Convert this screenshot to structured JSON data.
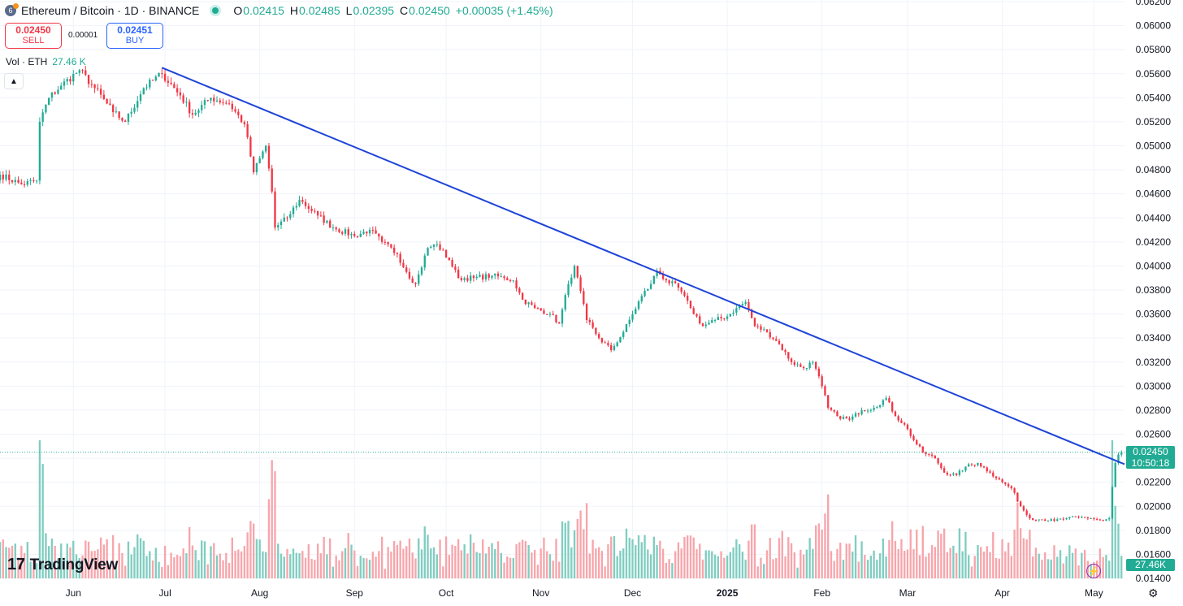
{
  "header": {
    "coin_icon_text": "6",
    "symbol": "Ethereum / Bitcoin · 1D · BINANCE",
    "open_label": "O",
    "open": "0.02415",
    "high_label": "H",
    "high": "0.02485",
    "low_label": "L",
    "low": "0.02395",
    "close_label": "C",
    "close": "0.02450",
    "change": "+0.00035 (+1.45%)"
  },
  "trade": {
    "sell_price": "0.02450",
    "sell_label": "SELL",
    "spread": "0.00001",
    "buy_price": "0.02451",
    "buy_label": "BUY"
  },
  "volume": {
    "label": "Vol · ETH",
    "value": "27.46 K",
    "axis_label": "27.46K"
  },
  "brand": {
    "name": "TradingView"
  },
  "last_price": {
    "price": "0.02450",
    "countdown": "10:50:18"
  },
  "colors": {
    "up": "#22ab94",
    "down": "#f23645",
    "trendline": "#1e44d8",
    "grid": "#f0f3fa",
    "vol_up": "#7fcdc0",
    "vol_down": "#f7a5ab"
  },
  "icons": {
    "collapse": "chevron-up-icon",
    "logo": "tradingview-logo-icon",
    "bolt": "lightning-icon",
    "settings": "gear-icon"
  },
  "chart_data": {
    "type": "candlestick",
    "title": "Ethereum / Bitcoin · 1D · BINANCE",
    "ylim": [
      0.014,
      0.062
    ],
    "y_ticks": [
      "0.06200",
      "0.06000",
      "0.05800",
      "0.05600",
      "0.05400",
      "0.05200",
      "0.05000",
      "0.04800",
      "0.04600",
      "0.04400",
      "0.04200",
      "0.04000",
      "0.03800",
      "0.03600",
      "0.03400",
      "0.03200",
      "0.03000",
      "0.02800",
      "0.02600",
      "0.02400",
      "0.02200",
      "0.02000",
      "0.01800",
      "0.01600",
      "0.01400"
    ],
    "x_ticks": [
      "Jun",
      "Jul",
      "Aug",
      "Sep",
      "Oct",
      "Nov",
      "Dec",
      "2025",
      "Feb",
      "Mar",
      "Apr",
      "May"
    ],
    "x_tick_dates": [
      "2024-06-01",
      "2024-07-01",
      "2024-08-01",
      "2024-09-01",
      "2024-10-01",
      "2024-11-01",
      "2024-12-01",
      "2025-01-01",
      "2025-02-01",
      "2025-03-01",
      "2025-04-01",
      "2025-05-01"
    ],
    "x_range": [
      "2024-05-08",
      "2025-05-11"
    ],
    "series": {
      "close_path": [
        {
          "date": "2024-05-08",
          "close": 0.0476
        },
        {
          "date": "2024-05-15",
          "close": 0.0468
        },
        {
          "date": "2024-05-20",
          "close": 0.0471
        },
        {
          "date": "2024-05-21",
          "close": 0.052
        },
        {
          "date": "2024-05-24",
          "close": 0.054
        },
        {
          "date": "2024-05-28",
          "close": 0.055
        },
        {
          "date": "2024-06-03",
          "close": 0.0563
        },
        {
          "date": "2024-06-08",
          "close": 0.0548
        },
        {
          "date": "2024-06-14",
          "close": 0.0528
        },
        {
          "date": "2024-06-18",
          "close": 0.052
        },
        {
          "date": "2024-06-24",
          "close": 0.0548
        },
        {
          "date": "2024-06-30",
          "close": 0.056
        },
        {
          "date": "2024-07-06",
          "close": 0.0542
        },
        {
          "date": "2024-07-10",
          "close": 0.0526
        },
        {
          "date": "2024-07-16",
          "close": 0.054
        },
        {
          "date": "2024-07-22",
          "close": 0.0535
        },
        {
          "date": "2024-07-27",
          "close": 0.0518
        },
        {
          "date": "2024-07-30",
          "close": 0.0478
        },
        {
          "date": "2024-08-03",
          "close": 0.05
        },
        {
          "date": "2024-08-05",
          "close": 0.0462
        },
        {
          "date": "2024-08-06",
          "close": 0.0432
        },
        {
          "date": "2024-08-10",
          "close": 0.044
        },
        {
          "date": "2024-08-14",
          "close": 0.0455
        },
        {
          "date": "2024-08-20",
          "close": 0.0442
        },
        {
          "date": "2024-08-25",
          "close": 0.0432
        },
        {
          "date": "2024-09-01",
          "close": 0.0425
        },
        {
          "date": "2024-09-06",
          "close": 0.043
        },
        {
          "date": "2024-09-10",
          "close": 0.042
        },
        {
          "date": "2024-09-15",
          "close": 0.041
        },
        {
          "date": "2024-09-18",
          "close": 0.0395
        },
        {
          "date": "2024-09-21",
          "close": 0.0385
        },
        {
          "date": "2024-09-25",
          "close": 0.0415
        },
        {
          "date": "2024-09-28",
          "close": 0.0418
        },
        {
          "date": "2024-10-02",
          "close": 0.0405
        },
        {
          "date": "2024-10-05",
          "close": 0.039
        },
        {
          "date": "2024-10-10",
          "close": 0.039
        },
        {
          "date": "2024-10-16",
          "close": 0.0392
        },
        {
          "date": "2024-10-20",
          "close": 0.039
        },
        {
          "date": "2024-10-23",
          "close": 0.0388
        },
        {
          "date": "2024-10-26",
          "close": 0.0372
        },
        {
          "date": "2024-10-30",
          "close": 0.0365
        },
        {
          "date": "2024-11-04",
          "close": 0.036
        },
        {
          "date": "2024-11-07",
          "close": 0.0352
        },
        {
          "date": "2024-11-10",
          "close": 0.0385
        },
        {
          "date": "2024-11-12",
          "close": 0.04
        },
        {
          "date": "2024-11-16",
          "close": 0.0355
        },
        {
          "date": "2024-11-20",
          "close": 0.034
        },
        {
          "date": "2024-11-24",
          "close": 0.033
        },
        {
          "date": "2024-11-28",
          "close": 0.0345
        },
        {
          "date": "2024-12-01",
          "close": 0.036
        },
        {
          "date": "2024-12-04",
          "close": 0.0375
        },
        {
          "date": "2024-12-07",
          "close": 0.0385
        },
        {
          "date": "2024-12-09",
          "close": 0.0396
        },
        {
          "date": "2024-12-12",
          "close": 0.0388
        },
        {
          "date": "2024-12-16",
          "close": 0.0382
        },
        {
          "date": "2024-12-20",
          "close": 0.0365
        },
        {
          "date": "2024-12-24",
          "close": 0.035
        },
        {
          "date": "2024-12-28",
          "close": 0.0355
        },
        {
          "date": "2025-01-01",
          "close": 0.0358
        },
        {
          "date": "2025-01-04",
          "close": 0.0365
        },
        {
          "date": "2025-01-07",
          "close": 0.037
        },
        {
          "date": "2025-01-10",
          "close": 0.035
        },
        {
          "date": "2025-01-14",
          "close": 0.0345
        },
        {
          "date": "2025-01-18",
          "close": 0.0335
        },
        {
          "date": "2025-01-22",
          "close": 0.032
        },
        {
          "date": "2025-01-26",
          "close": 0.0315
        },
        {
          "date": "2025-01-29",
          "close": 0.032
        },
        {
          "date": "2025-02-01",
          "close": 0.03
        },
        {
          "date": "2025-02-03",
          "close": 0.0282
        },
        {
          "date": "2025-02-06",
          "close": 0.0275
        },
        {
          "date": "2025-02-10",
          "close": 0.0272
        },
        {
          "date": "2025-02-14",
          "close": 0.028
        },
        {
          "date": "2025-02-18",
          "close": 0.0282
        },
        {
          "date": "2025-02-22",
          "close": 0.029
        },
        {
          "date": "2025-02-25",
          "close": 0.0275
        },
        {
          "date": "2025-02-28",
          "close": 0.0268
        },
        {
          "date": "2025-03-03",
          "close": 0.0255
        },
        {
          "date": "2025-03-06",
          "close": 0.0245
        },
        {
          "date": "2025-03-10",
          "close": 0.024
        },
        {
          "date": "2025-03-13",
          "close": 0.0228
        },
        {
          "date": "2025-03-17",
          "close": 0.0226
        },
        {
          "date": "2025-03-20",
          "close": 0.0233
        },
        {
          "date": "2025-03-24",
          "close": 0.0236
        },
        {
          "date": "2025-03-28",
          "close": 0.0228
        },
        {
          "date": "2025-04-01",
          "close": 0.022
        },
        {
          "date": "2025-04-04",
          "close": 0.0215
        },
        {
          "date": "2025-04-07",
          "close": 0.02
        },
        {
          "date": "2025-04-10",
          "close": 0.019
        },
        {
          "date": "2025-04-14",
          "close": 0.0189
        },
        {
          "date": "2025-04-18",
          "close": 0.0188
        },
        {
          "date": "2025-04-22",
          "close": 0.019
        },
        {
          "date": "2025-04-26",
          "close": 0.0191
        },
        {
          "date": "2025-04-30",
          "close": 0.019
        },
        {
          "date": "2025-05-04",
          "close": 0.0188
        },
        {
          "date": "2025-05-06",
          "close": 0.019
        },
        {
          "date": "2025-05-07",
          "close": 0.0216
        },
        {
          "date": "2025-05-08",
          "close": 0.0236
        },
        {
          "date": "2025-05-09",
          "close": 0.0243
        },
        {
          "date": "2025-05-10",
          "close": 0.0245
        }
      ]
    },
    "annotations": [
      {
        "type": "trendline",
        "from": {
          "date": "2024-06-30",
          "value": 0.0565
        },
        "to": {
          "date": "2025-05-11",
          "value": 0.0235
        }
      },
      {
        "type": "price_line",
        "value": 0.0245
      }
    ],
    "volume_spikes": [
      {
        "date": "2024-05-22",
        "value_k": 150,
        "direction": "up"
      },
      {
        "date": "2024-08-05",
        "value_k": 155,
        "direction": "down"
      },
      {
        "date": "2025-02-03",
        "value_k": 110,
        "direction": "down"
      },
      {
        "date": "2025-05-08",
        "value_k": 95,
        "direction": "up"
      }
    ],
    "grid": true,
    "legend": "top-left"
  }
}
